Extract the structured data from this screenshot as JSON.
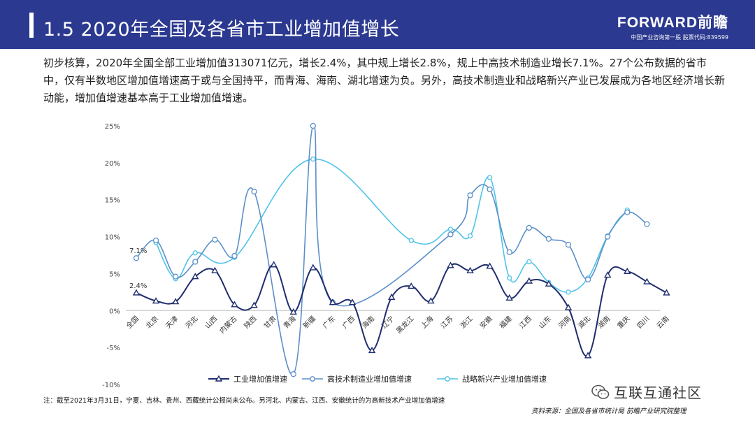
{
  "header": {
    "title": "1.5 2020年全国及各省市工业增加值增长",
    "brand_logo": "FORWARD前瞻",
    "brand_tagline": "中国产业咨询第一股  股票代码:839599"
  },
  "intro": "初步核算，2020年全国全部工业增加值313071亿元，增长2.4%，其中规上增长2.8%，规上中高技术制造业增长7.1%。27个公布数据的省市中，仅有半数地区增加值增速高于或与全国持平，而青海、海南、湖北增速为负。另外，高技术制造业和战略新兴产业已发展成为各地区经济增长新动能，增加值增速基本高于工业增加值增速。",
  "footnote": "注：截至2021年3月31日，宁夏、吉林、贵州、西藏统计公报尚未公布。另河北、内蒙古、江西、安徽统计的为高新技术产业增加值增速",
  "source": "资料来源：全国及各省市统计局  前瞻产业研究院整理",
  "wechat_label": "互联互通社区",
  "colors": {
    "header_bg": "#2b3990",
    "series_industry": "#1f2d6e",
    "series_hightech": "#5b8fc9",
    "series_emerging": "#4fc3e8"
  },
  "chart_data": {
    "type": "line",
    "categories": [
      "全国",
      "北京",
      "天津",
      "河北",
      "山西",
      "内蒙古",
      "陕西",
      "甘肃",
      "青海",
      "新疆",
      "广东",
      "广西",
      "海南",
      "辽宁",
      "黑龙江",
      "上海",
      "江苏",
      "浙江",
      "安徽",
      "福建",
      "江西",
      "山东",
      "河南",
      "湖北",
      "湖南",
      "重庆",
      "四川",
      "云南"
    ],
    "ylim": [
      -10,
      25
    ],
    "yticks": [
      -10,
      -5,
      0,
      5,
      10,
      15,
      20,
      25
    ],
    "ytick_labels": [
      "-10%",
      "-5%",
      "0%",
      "5%",
      "10%",
      "15%",
      "20%",
      "25%"
    ],
    "legend_position": "bottom",
    "grid": false,
    "annotations": [
      {
        "text": "7.1%",
        "series": 1,
        "index": 0
      },
      {
        "text": "2.4%",
        "series": 0,
        "index": 0
      }
    ],
    "series": [
      {
        "name": "工业增加值增速",
        "marker": "triangle",
        "values": [
          2.4,
          1.3,
          1.2,
          4.6,
          5.4,
          0.8,
          0.7,
          6.2,
          -0.2,
          5.8,
          1.1,
          1.1,
          -5.4,
          1.8,
          3.3,
          1.3,
          6.1,
          5.4,
          6.0,
          1.7,
          4.0,
          3.6,
          0.4,
          -6.1,
          4.8,
          5.3,
          3.9,
          2.4
        ]
      },
      {
        "name": "高技术制造业增加值增速",
        "marker": "circle",
        "values": [
          7.1,
          9.5,
          4.6,
          6.6,
          9.6,
          7.4,
          16.1,
          null,
          -8.6,
          25.0,
          1.1,
          null,
          null,
          null,
          null,
          null,
          10.3,
          15.6,
          16.4,
          7.9,
          11.2,
          9.7,
          8.9,
          4.2,
          10.0,
          13.3,
          11.7,
          null
        ]
      },
      {
        "name": "战略新兴产业增加值增速",
        "marker": "circle-small",
        "values": [
          null,
          9.2,
          4.3,
          7.8,
          null,
          7.2,
          null,
          null,
          null,
          20.5,
          null,
          null,
          null,
          null,
          9.5,
          null,
          11.0,
          10.1,
          18.0,
          4.4,
          6.6,
          3.8,
          2.5,
          4.4,
          10.1,
          13.6,
          null,
          null
        ]
      }
    ]
  }
}
